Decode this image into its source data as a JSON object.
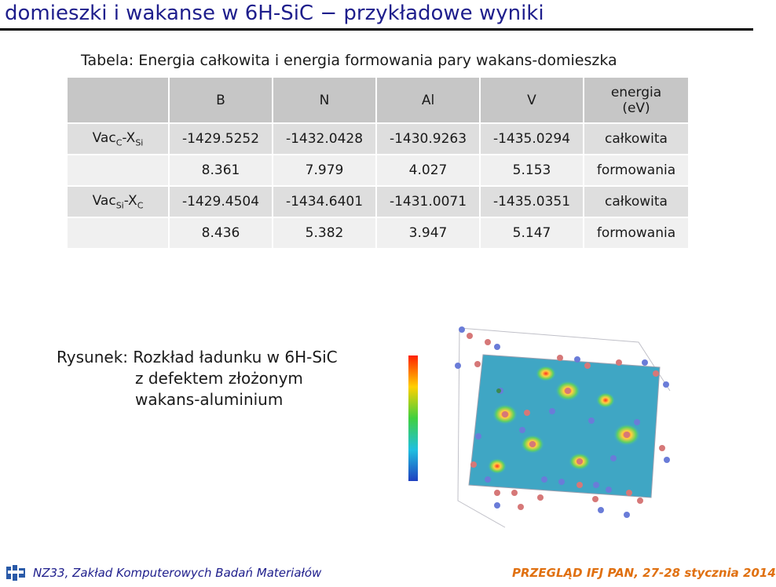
{
  "slide": {
    "title": "domieszki i wakanse w 6H-SiC − przykładowe wyniki"
  },
  "table": {
    "caption": "Tabela: Energia całkowita i energia formowania pary wakans-domieszka",
    "headers": [
      "B",
      "N",
      "Al",
      "V"
    ],
    "energy_header_line1": "energia",
    "energy_header_line2": "(eV)",
    "pairs": [
      {
        "label_base": "Vac",
        "label_sub1": "C",
        "label_mid": "-X",
        "label_sub2": "Si"
      },
      {
        "label_base": "Vac",
        "label_sub1": "Si",
        "label_mid": "-X",
        "label_sub2": "C"
      }
    ],
    "rows": [
      {
        "values": [
          "-1429.5252",
          "-1432.0428",
          "-1430.9263",
          "-1435.0294"
        ],
        "type": "całkowita"
      },
      {
        "values": [
          "8.361",
          "7.979",
          "4.027",
          "5.153"
        ],
        "type": "formowania"
      },
      {
        "values": [
          "-1429.4504",
          "-1434.6401",
          "-1431.0071",
          "-1435.0351"
        ],
        "type": "całkowita"
      },
      {
        "values": [
          "8.436",
          "5.382",
          "3.947",
          "5.147"
        ],
        "type": "formowania"
      }
    ]
  },
  "figure": {
    "caption_line1": "Rysunek: Rozkład ładunku w 6H-SiC",
    "caption_line2": "z defektem złożonym",
    "caption_line3": "wakans-aluminium"
  },
  "footer": {
    "left": "NZ33, Zakład Komputerowych Badań Materiałów",
    "right": "PRZEGLĄD IFJ PAN, 27-28 stycznia 2014"
  },
  "colors": {
    "title": "#1e1e8c",
    "footer_left": "#1e1e8c",
    "footer_right": "#e07010",
    "table_header": "#c6c6c6"
  }
}
